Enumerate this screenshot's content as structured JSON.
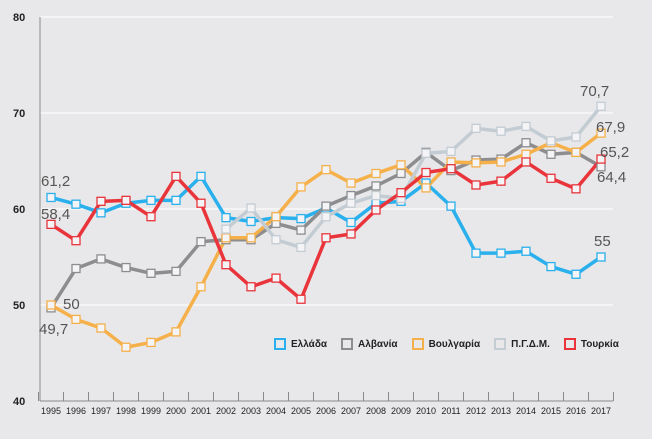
{
  "chart_data": {
    "type": "line",
    "title": "",
    "xlabel": "",
    "ylabel": "",
    "ylim": [
      40,
      80
    ],
    "yticks": [
      "40",
      "50",
      "60",
      "70",
      "80"
    ],
    "x": [
      "1995",
      "1996",
      "1997",
      "1998",
      "1999",
      "2000",
      "2001",
      "2002",
      "2003",
      "2004",
      "2005",
      "2006",
      "2007",
      "2008",
      "2009",
      "2010",
      "2011",
      "2012",
      "2013",
      "2014",
      "2015",
      "2016",
      "2017"
    ],
    "grid": true,
    "legend_position": "bottom-right",
    "series": [
      {
        "name": "Ελλάδα",
        "color": "#2ab0ec",
        "values": [
          61.2,
          60.5,
          59.6,
          60.6,
          60.9,
          60.9,
          63.4,
          59.1,
          58.7,
          59.1,
          59.0,
          60.1,
          58.6,
          60.6,
          60.8,
          62.7,
          60.3,
          55.4,
          55.4,
          55.6,
          54.0,
          53.2,
          55.0
        ]
      },
      {
        "name": "Αλβανία",
        "color": "#8d8d8f",
        "values": [
          49.7,
          53.8,
          54.8,
          53.9,
          53.3,
          53.5,
          56.6,
          56.8,
          56.8,
          58.5,
          57.8,
          60.3,
          61.4,
          62.4,
          63.7,
          65.9,
          64.0,
          65.1,
          65.2,
          66.9,
          65.7,
          65.9,
          64.4
        ]
      },
      {
        "name": "Βουλγαρία",
        "color": "#f6b04a",
        "values": [
          50.0,
          48.5,
          47.6,
          45.6,
          46.1,
          47.2,
          51.9,
          57.0,
          57.0,
          59.2,
          62.3,
          64.1,
          62.7,
          63.7,
          64.6,
          62.2,
          64.9,
          64.8,
          64.9,
          65.7,
          66.9,
          65.9,
          67.9
        ]
      },
      {
        "name": "Π.Γ.Δ.Μ.",
        "color": "#c3ccd3",
        "values": [
          null,
          null,
          null,
          null,
          null,
          null,
          null,
          57.9,
          60.1,
          56.8,
          56.0,
          59.2,
          60.6,
          61.4,
          61.1,
          65.8,
          66.0,
          68.4,
          68.1,
          68.6,
          67.1,
          67.5,
          70.7
        ]
      },
      {
        "name": "Τουρκία",
        "color": "#e8343a",
        "values": [
          58.4,
          56.7,
          60.8,
          60.9,
          59.2,
          63.4,
          60.6,
          54.2,
          51.9,
          52.8,
          50.6,
          57.0,
          57.4,
          59.9,
          61.7,
          63.8,
          64.2,
          62.5,
          62.9,
          64.9,
          63.2,
          62.1,
          65.2
        ]
      }
    ],
    "annotations": [
      "61,2",
      "58,4",
      "50",
      "49,7",
      "70,7",
      "67,9",
      "65,2",
      "64,4",
      "55"
    ]
  }
}
